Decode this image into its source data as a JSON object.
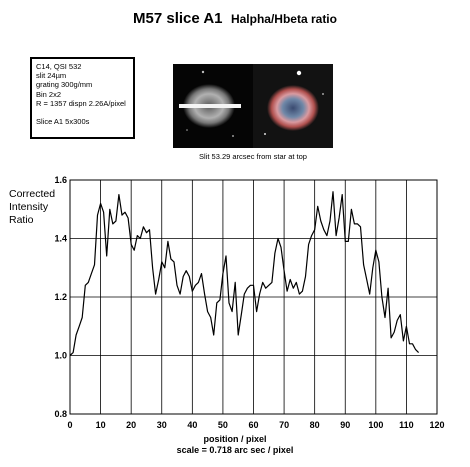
{
  "title": "M57 slice A1",
  "subtitle": "Halpha/Hbeta ratio",
  "info": {
    "line1": "C14, QSI 532",
    "line2": "slit 24µm",
    "line3": "grating 300g/mm",
    "line4": "Bin 2x2",
    "line5": "R = 1357 dispn 2.26A/pixel",
    "line6": "Slice A1  5x300s"
  },
  "caption": "Slit 53.29 arcsec from star at top",
  "chart_data": {
    "type": "line",
    "ylabel_lines": [
      "Corrected",
      "Intensity",
      "Ratio"
    ],
    "xlabel": "position / pixel",
    "xlabel2": "scale = 0.718 arc sec / pixel",
    "xlim": [
      0,
      120
    ],
    "ylim": [
      0.8,
      1.6
    ],
    "xticks": [
      0,
      10,
      20,
      30,
      40,
      50,
      60,
      70,
      80,
      90,
      100,
      110,
      120
    ],
    "yticks": [
      0.8,
      1.0,
      1.2,
      1.4,
      1.6
    ],
    "ytick_labels": [
      "0.8",
      "1.0",
      "1.2",
      "1.4",
      "1.6"
    ],
    "grid": true,
    "series": [
      {
        "color": "#000000",
        "x": [
          0,
          1,
          2,
          3,
          4,
          5,
          6,
          7,
          8,
          9,
          10,
          11,
          12,
          13,
          14,
          15,
          16,
          17,
          18,
          19,
          20,
          21,
          22,
          23,
          24,
          25,
          26,
          27,
          28,
          29,
          30,
          31,
          32,
          33,
          34,
          35,
          36,
          37,
          38,
          39,
          40,
          41,
          42,
          43,
          44,
          45,
          46,
          47,
          48,
          49,
          50,
          51,
          52,
          53,
          54,
          55,
          56,
          57,
          58,
          59,
          60,
          61,
          62,
          63,
          64,
          65,
          66,
          67,
          68,
          69,
          70,
          71,
          72,
          73,
          74,
          75,
          76,
          77,
          78,
          79,
          80,
          81,
          82,
          83,
          84,
          85,
          86,
          87,
          88,
          89,
          90,
          91,
          92,
          93,
          94,
          95,
          96,
          97,
          98,
          99,
          100,
          101,
          102,
          103,
          104,
          105,
          106,
          107,
          108,
          109,
          110,
          111,
          112,
          113,
          114
        ],
        "y": [
          1.0,
          1.01,
          1.07,
          1.1,
          1.13,
          1.24,
          1.25,
          1.28,
          1.31,
          1.48,
          1.52,
          1.49,
          1.34,
          1.5,
          1.45,
          1.46,
          1.55,
          1.48,
          1.49,
          1.47,
          1.38,
          1.36,
          1.41,
          1.4,
          1.44,
          1.42,
          1.43,
          1.3,
          1.21,
          1.26,
          1.32,
          1.3,
          1.39,
          1.33,
          1.32,
          1.24,
          1.21,
          1.27,
          1.29,
          1.27,
          1.22,
          1.24,
          1.25,
          1.28,
          1.21,
          1.15,
          1.13,
          1.07,
          1.18,
          1.19,
          1.28,
          1.34,
          1.18,
          1.15,
          1.25,
          1.07,
          1.14,
          1.21,
          1.23,
          1.24,
          1.24,
          1.15,
          1.21,
          1.25,
          1.23,
          1.24,
          1.25,
          1.35,
          1.4,
          1.37,
          1.29,
          1.22,
          1.26,
          1.23,
          1.25,
          1.21,
          1.22,
          1.27,
          1.38,
          1.41,
          1.43,
          1.51,
          1.46,
          1.43,
          1.41,
          1.46,
          1.56,
          1.41,
          1.47,
          1.55,
          1.39,
          1.39,
          1.5,
          1.45,
          1.45,
          1.44,
          1.31,
          1.26,
          1.21,
          1.3,
          1.36,
          1.32,
          1.2,
          1.13,
          1.23,
          1.06,
          1.08,
          1.12,
          1.14,
          1.05,
          1.1,
          1.04,
          1.04,
          1.02,
          1.01
        ]
      }
    ]
  }
}
